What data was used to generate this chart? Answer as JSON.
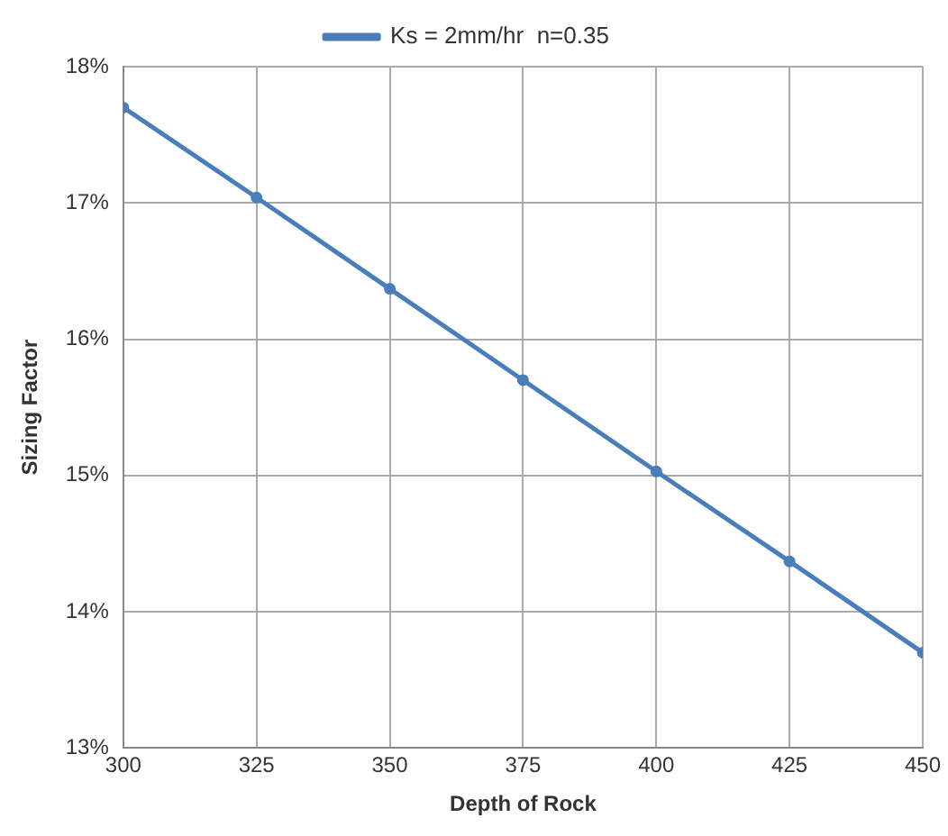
{
  "chart_data": {
    "type": "line",
    "xlabel": "Depth of Rock",
    "ylabel": "Sizing Factor",
    "x": [
      300,
      325,
      350,
      375,
      400,
      425,
      450
    ],
    "series": [
      {
        "name": "Ks = 2mm/hr  n=0.35",
        "color": "#4a7ebb",
        "values": [
          17.7,
          17.04,
          16.37,
          15.7,
          15.03,
          14.37,
          13.7
        ]
      }
    ],
    "xlim": [
      300,
      450
    ],
    "xticks": [
      300,
      325,
      350,
      375,
      400,
      425,
      450
    ],
    "ylim": [
      13,
      18
    ],
    "yticks": [
      {
        "value": 13,
        "label": "13%"
      },
      {
        "value": 14,
        "label": "14%"
      },
      {
        "value": 15,
        "label": "15%"
      },
      {
        "value": 16,
        "label": "16%"
      },
      {
        "value": 17,
        "label": "17%"
      },
      {
        "value": 18,
        "label": "18%"
      }
    ],
    "grid": true,
    "legend": "top",
    "marker": "circle",
    "line_style": "solid"
  }
}
